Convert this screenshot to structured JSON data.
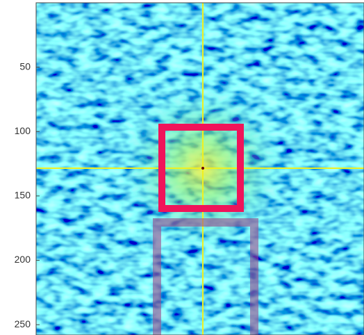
{
  "chart_data": {
    "type": "image",
    "ylim": [
      0,
      258
    ],
    "yticks": [
      50,
      100,
      150,
      200,
      250
    ]
  }
}
